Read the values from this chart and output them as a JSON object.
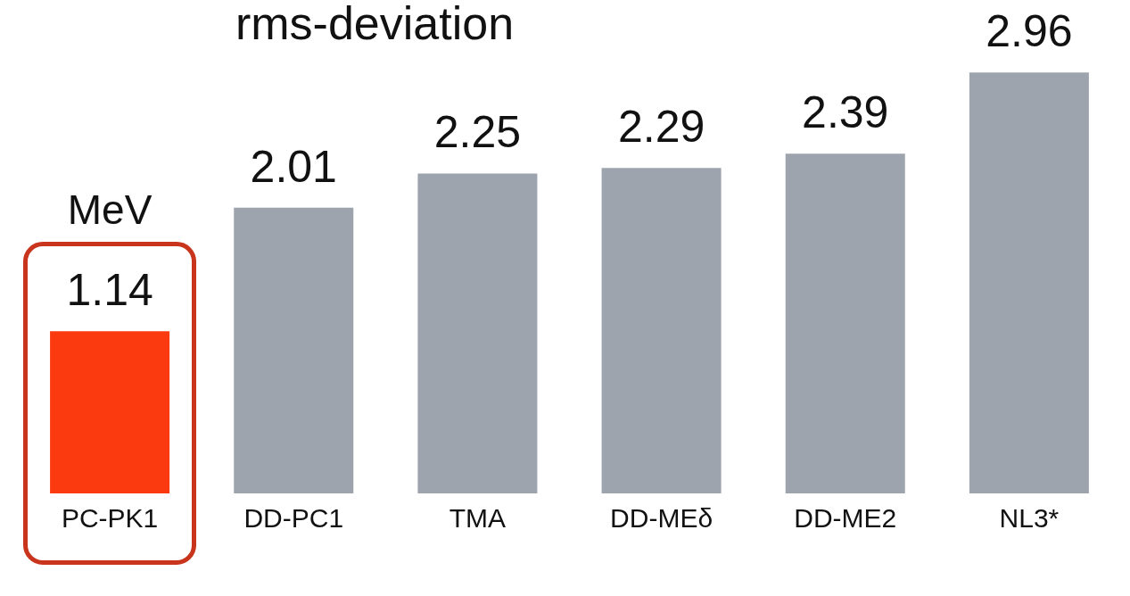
{
  "chart_data": {
    "type": "bar",
    "title": "rms-deviation",
    "ylabel": "MeV",
    "categories": [
      "PC-PK1",
      "DD-PC1",
      "TMA",
      "DD-MEδ",
      "DD-ME2",
      "NL3*"
    ],
    "values": [
      1.14,
      2.01,
      2.25,
      2.29,
      2.39,
      2.96
    ],
    "colors": [
      "#fb3a10",
      "#9ea4ae",
      "#9ea4ae",
      "#9ea4ae",
      "#9ea4ae",
      "#9ea4ae"
    ],
    "tick_labels": "x",
    "data_labels": true,
    "grid": false,
    "legend": false
  }
}
